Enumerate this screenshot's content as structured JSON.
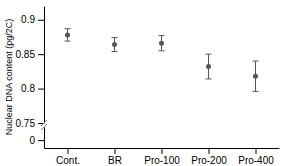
{
  "chart_data": [
    {
      "type": "errorbar",
      "ylabel": "Nuclear DNA content (pg/2C)",
      "categories": [
        "Cont.",
        "BR",
        "Pro-100",
        "Pro-200",
        "Pro-400"
      ],
      "values": [
        0.878,
        0.864,
        0.866,
        0.832,
        0.818
      ],
      "errors": [
        0.009,
        0.01,
        0.011,
        0.018,
        0.022
      ],
      "color": "#555555",
      "ylim": [
        0.75,
        0.92
      ],
      "yticks": [
        0.75,
        0.8,
        0.85,
        0.9
      ],
      "tick_labels": "y"
    },
    {
      "type": "errorbar",
      "categories": [
        "Cont.",
        "BR",
        "Pro-100",
        "Pro-200",
        "Pro-400"
      ],
      "ylim": [
        -0.3,
        0.5
      ],
      "yticks": [
        0
      ]
    }
  ]
}
